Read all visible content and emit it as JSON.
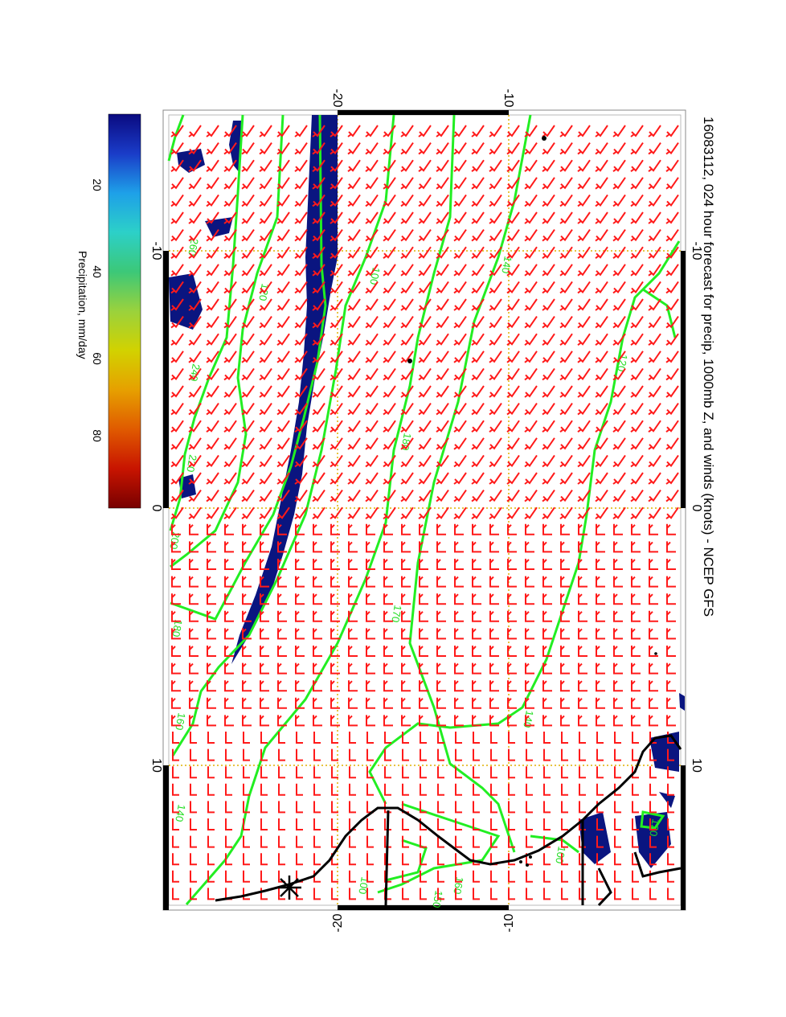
{
  "title": "16083112, 024 hour forecast for precip, 1000mb Z, and winds (knots) - NCEP GFS",
  "colorbar": {
    "label": "Precipitation, mm/day",
    "ticks": [
      "20",
      "40",
      "60",
      "80"
    ],
    "colors": [
      "#0a0a80",
      "#1a3cc8",
      "#1ea0e8",
      "#2cd0c8",
      "#3cc878",
      "#9ad23c",
      "#d2d200",
      "#e6a000",
      "#e05a00",
      "#c81400",
      "#780000"
    ]
  },
  "axes": {
    "top": [
      "-20",
      "-10"
    ],
    "bottom": [
      "-20",
      "-10"
    ],
    "left": [
      "-10",
      "0",
      "10"
    ],
    "right": [
      "-10",
      "0",
      "10"
    ]
  },
  "contour_labels": [
    "260",
    "240",
    "220",
    "200",
    "180",
    "160",
    "140",
    "120",
    "100",
    "180",
    "170",
    "160",
    "150",
    "140",
    "140",
    "120",
    "100",
    "100",
    "120"
  ],
  "colors": {
    "contour": "#22ee22",
    "barb": "#ff1a1a",
    "precip": "#0a1580",
    "coast": "#000000",
    "grid": "#e0b000"
  }
}
